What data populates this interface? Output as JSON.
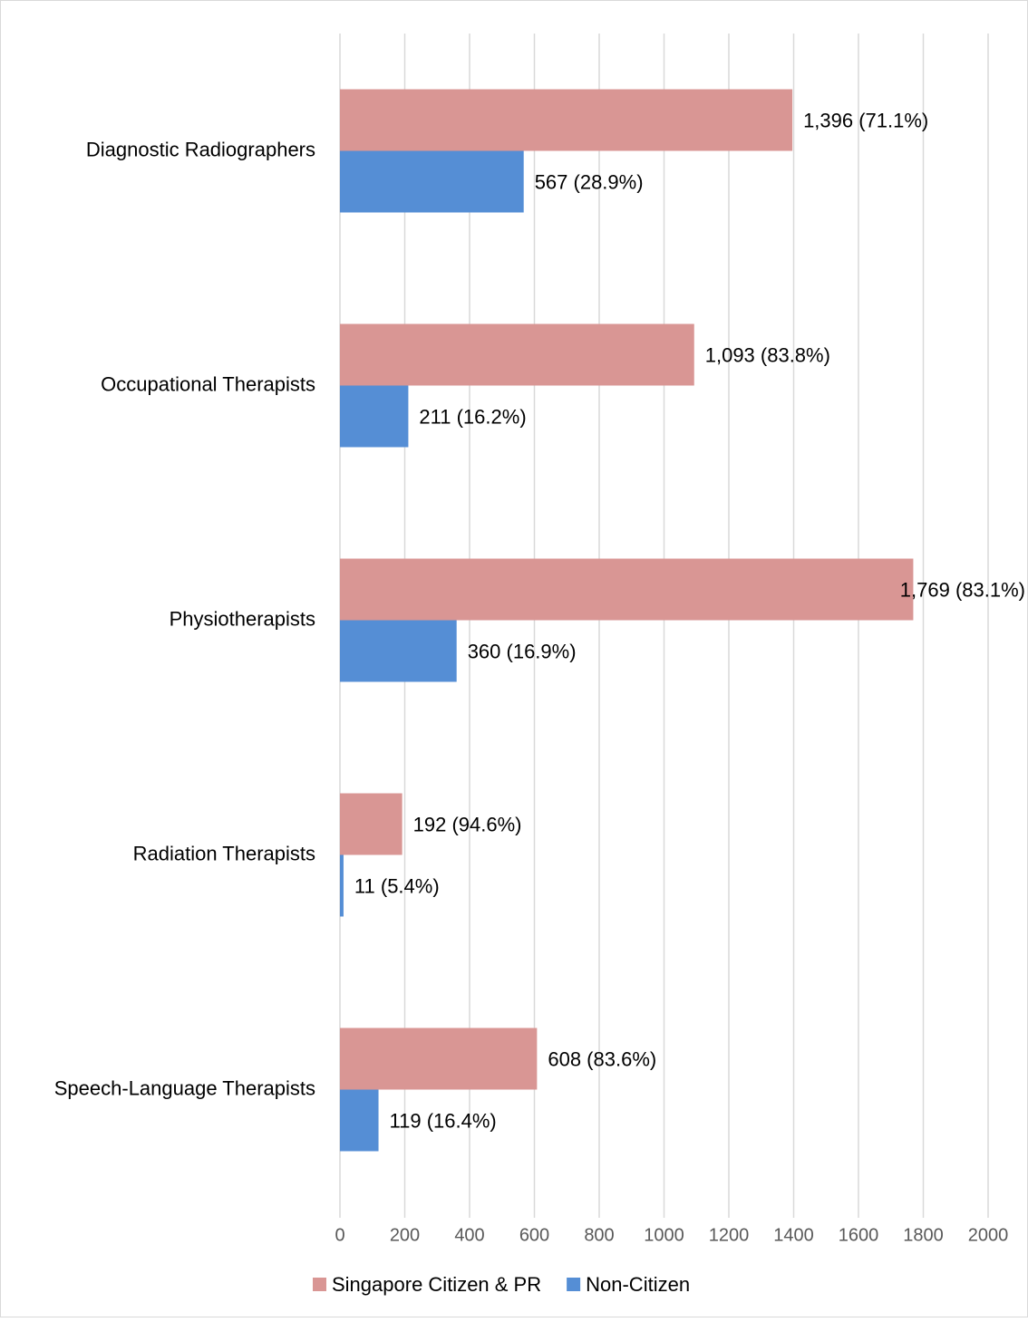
{
  "chart_data": {
    "type": "hbar",
    "categories": [
      "Diagnostic Radiographers",
      "Occupational Therapists",
      "Physiotherapists",
      "Radiation Therapists",
      "Speech-Language Therapists"
    ],
    "series": [
      {
        "name": "Singapore Citizen & PR",
        "color": "#d99694",
        "values": [
          1396,
          1093,
          1769,
          192,
          608
        ],
        "value_labels": [
          "1,396 (71.1%)",
          "1,093 (83.8%)",
          "1,769 (83.1%)",
          "192 (94.6%)",
          "608 (83.6%)"
        ]
      },
      {
        "name": "Non-Citizen",
        "color": "#558ed5",
        "values": [
          567,
          211,
          360,
          11,
          119
        ],
        "value_labels": [
          "567 (28.9%)",
          "211 (16.2%)",
          "360 (16.9%)",
          "11 (5.4%)",
          "119 (16.4%)"
        ]
      }
    ],
    "xlim": [
      0,
      2000
    ],
    "xticks": [
      0,
      200,
      400,
      600,
      800,
      1000,
      1200,
      1400,
      1600,
      1800,
      2000
    ],
    "grid": true,
    "legend": "bottom"
  }
}
